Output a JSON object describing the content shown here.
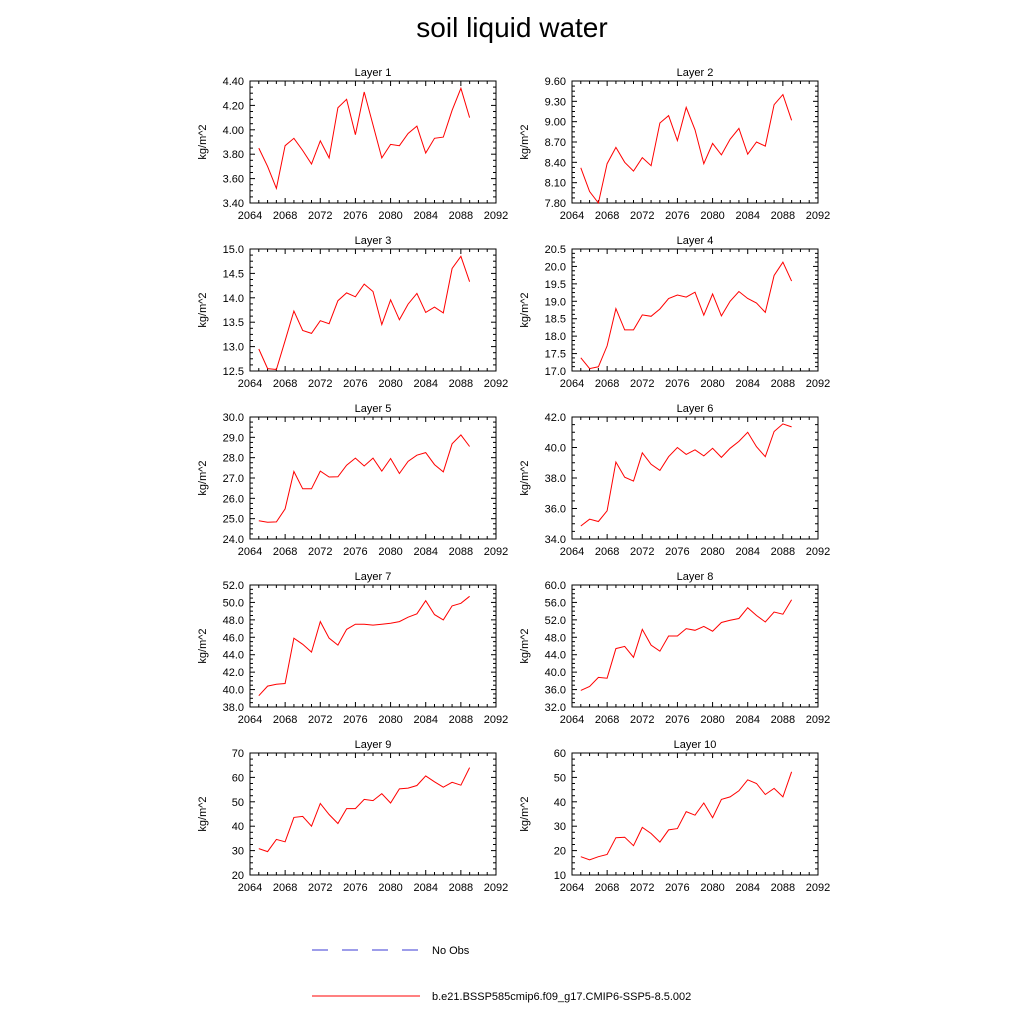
{
  "title": "soil liquid water",
  "legend": {
    "obs_label": "No Obs",
    "model_label": "b.e21.BSSP585cmip6.f09_g17.CMIP6-SSP5-8.5.002",
    "obs_color": "#3b3bd6",
    "model_color": "#ff0000"
  },
  "chart_data": [
    {
      "type": "line",
      "title": "Layer 1",
      "ylabel": "kg/m^2",
      "xlim": [
        2064,
        2092
      ],
      "xticks": [
        2064,
        2068,
        2072,
        2076,
        2080,
        2084,
        2088,
        2092
      ],
      "ylim": [
        3.4,
        4.4
      ],
      "yticks": [
        "3.40",
        "3.60",
        "3.80",
        "4.00",
        "4.20",
        "4.40"
      ],
      "x": [
        2065,
        2066,
        2067,
        2068,
        2069,
        2070,
        2071,
        2072,
        2073,
        2074,
        2075,
        2076,
        2077,
        2078,
        2079,
        2080,
        2081,
        2082,
        2083,
        2084,
        2085,
        2086,
        2087,
        2088,
        2089
      ],
      "y": [
        3.85,
        3.7,
        3.52,
        3.87,
        3.93,
        3.83,
        3.72,
        3.91,
        3.77,
        4.18,
        4.25,
        3.96,
        4.31,
        4.04,
        3.77,
        3.88,
        3.87,
        3.97,
        4.03,
        3.81,
        3.93,
        3.94,
        4.16,
        4.34,
        4.1
      ]
    },
    {
      "type": "line",
      "title": "Layer 2",
      "ylabel": "kg/m^2",
      "xlim": [
        2064,
        2092
      ],
      "xticks": [
        2064,
        2068,
        2072,
        2076,
        2080,
        2084,
        2088,
        2092
      ],
      "ylim": [
        7.8,
        9.6
      ],
      "yticks": [
        "7.80",
        "8.10",
        "8.40",
        "8.70",
        "9.00",
        "9.30",
        "9.60"
      ],
      "x": [
        2065,
        2066,
        2067,
        2068,
        2069,
        2070,
        2071,
        2072,
        2073,
        2074,
        2075,
        2076,
        2077,
        2078,
        2079,
        2080,
        2081,
        2082,
        2083,
        2084,
        2085,
        2086,
        2087,
        2088,
        2089
      ],
      "y": [
        8.32,
        7.97,
        7.8,
        8.38,
        8.62,
        8.4,
        8.27,
        8.47,
        8.35,
        8.98,
        9.09,
        8.72,
        9.21,
        8.88,
        8.38,
        8.68,
        8.51,
        8.74,
        8.9,
        8.52,
        8.7,
        8.64,
        9.25,
        9.4,
        9.02
      ]
    },
    {
      "type": "line",
      "title": "Layer 3",
      "ylabel": "kg/m^2",
      "xlim": [
        2064,
        2092
      ],
      "xticks": [
        2064,
        2068,
        2072,
        2076,
        2080,
        2084,
        2088,
        2092
      ],
      "ylim": [
        12.5,
        15.0
      ],
      "yticks": [
        "12.5",
        "13.0",
        "13.5",
        "14.0",
        "14.5",
        "15.0"
      ],
      "x": [
        2065,
        2066,
        2067,
        2068,
        2069,
        2070,
        2071,
        2072,
        2073,
        2074,
        2075,
        2076,
        2077,
        2078,
        2079,
        2080,
        2081,
        2082,
        2083,
        2084,
        2085,
        2086,
        2087,
        2088,
        2089
      ],
      "y": [
        12.95,
        12.55,
        12.53,
        13.12,
        13.73,
        13.33,
        13.27,
        13.53,
        13.47,
        13.94,
        14.1,
        14.02,
        14.28,
        14.13,
        13.45,
        13.96,
        13.55,
        13.87,
        14.09,
        13.7,
        13.81,
        13.69,
        14.6,
        14.85,
        14.33
      ]
    },
    {
      "type": "line",
      "title": "Layer 4",
      "ylabel": "kg/m^2",
      "xlim": [
        2064,
        2092
      ],
      "xticks": [
        2064,
        2068,
        2072,
        2076,
        2080,
        2084,
        2088,
        2092
      ],
      "ylim": [
        17.0,
        20.5
      ],
      "yticks": [
        "17.0",
        "17.5",
        "18.0",
        "18.5",
        "19.0",
        "19.5",
        "20.0",
        "20.5"
      ],
      "x": [
        2065,
        2066,
        2067,
        2068,
        2069,
        2070,
        2071,
        2072,
        2073,
        2074,
        2075,
        2076,
        2077,
        2078,
        2079,
        2080,
        2081,
        2082,
        2083,
        2084,
        2085,
        2086,
        2087,
        2088,
        2089
      ],
      "y": [
        17.38,
        17.07,
        17.12,
        17.72,
        18.79,
        18.18,
        18.18,
        18.61,
        18.57,
        18.78,
        19.08,
        19.18,
        19.12,
        19.26,
        18.6,
        19.21,
        18.58,
        19.0,
        19.28,
        19.08,
        18.95,
        18.68,
        19.74,
        20.12,
        19.58
      ]
    },
    {
      "type": "line",
      "title": "Layer 5",
      "ylabel": "kg/m^2",
      "xlim": [
        2064,
        2092
      ],
      "xticks": [
        2064,
        2068,
        2072,
        2076,
        2080,
        2084,
        2088,
        2092
      ],
      "ylim": [
        24.0,
        30.0
      ],
      "yticks": [
        "24.0",
        "25.0",
        "26.0",
        "27.0",
        "28.0",
        "29.0",
        "30.0"
      ],
      "x": [
        2065,
        2066,
        2067,
        2068,
        2069,
        2070,
        2071,
        2072,
        2073,
        2074,
        2075,
        2076,
        2077,
        2078,
        2079,
        2080,
        2081,
        2082,
        2083,
        2084,
        2085,
        2086,
        2087,
        2088,
        2089
      ],
      "y": [
        24.9,
        24.82,
        24.84,
        25.48,
        27.32,
        26.47,
        26.47,
        27.34,
        27.05,
        27.06,
        27.63,
        27.98,
        27.59,
        27.98,
        27.34,
        27.96,
        27.22,
        27.82,
        28.12,
        28.25,
        27.66,
        27.3,
        28.68,
        29.12,
        28.55
      ]
    },
    {
      "type": "line",
      "title": "Layer 6",
      "ylabel": "kg/m^2",
      "xlim": [
        2064,
        2092
      ],
      "xticks": [
        2064,
        2068,
        2072,
        2076,
        2080,
        2084,
        2088,
        2092
      ],
      "ylim": [
        34.0,
        42.0
      ],
      "yticks": [
        "34.0",
        "36.0",
        "38.0",
        "40.0",
        "42.0"
      ],
      "x": [
        2065,
        2066,
        2067,
        2068,
        2069,
        2070,
        2071,
        2072,
        2073,
        2074,
        2075,
        2076,
        2077,
        2078,
        2079,
        2080,
        2081,
        2082,
        2083,
        2084,
        2085,
        2086,
        2087,
        2088,
        2089
      ],
      "y": [
        34.85,
        35.3,
        35.15,
        35.85,
        39.05,
        38.05,
        37.8,
        39.65,
        38.9,
        38.5,
        39.4,
        40.0,
        39.55,
        39.85,
        39.45,
        39.95,
        39.35,
        39.95,
        40.4,
        41.0,
        40.05,
        39.4,
        41.05,
        41.55,
        41.35
      ]
    },
    {
      "type": "line",
      "title": "Layer 7",
      "ylabel": "kg/m^2",
      "xlim": [
        2064,
        2092
      ],
      "xticks": [
        2064,
        2068,
        2072,
        2076,
        2080,
        2084,
        2088,
        2092
      ],
      "ylim": [
        38.0,
        52.0
      ],
      "yticks": [
        "38.0",
        "40.0",
        "42.0",
        "44.0",
        "46.0",
        "48.0",
        "50.0",
        "52.0"
      ],
      "x": [
        2065,
        2066,
        2067,
        2068,
        2069,
        2070,
        2071,
        2072,
        2073,
        2074,
        2075,
        2076,
        2077,
        2078,
        2079,
        2080,
        2081,
        2082,
        2083,
        2084,
        2085,
        2086,
        2087,
        2088,
        2089
      ],
      "y": [
        39.3,
        40.4,
        40.6,
        40.7,
        45.9,
        45.2,
        44.3,
        47.8,
        45.9,
        45.1,
        46.9,
        47.5,
        47.5,
        47.4,
        47.5,
        47.6,
        47.8,
        48.3,
        48.7,
        50.2,
        48.6,
        48.0,
        49.6,
        49.9,
        50.7
      ]
    },
    {
      "type": "line",
      "title": "Layer 8",
      "ylabel": "kg/m^2",
      "xlim": [
        2064,
        2092
      ],
      "xticks": [
        2064,
        2068,
        2072,
        2076,
        2080,
        2084,
        2088,
        2092
      ],
      "ylim": [
        32.0,
        60.0
      ],
      "yticks": [
        "32.0",
        "36.0",
        "40.0",
        "44.0",
        "48.0",
        "52.0",
        "56.0",
        "60.0"
      ],
      "x": [
        2065,
        2066,
        2067,
        2068,
        2069,
        2070,
        2071,
        2072,
        2073,
        2074,
        2075,
        2076,
        2077,
        2078,
        2079,
        2080,
        2081,
        2082,
        2083,
        2084,
        2085,
        2086,
        2087,
        2088,
        2089
      ],
      "y": [
        35.8,
        36.7,
        38.8,
        38.6,
        45.4,
        45.9,
        43.4,
        49.8,
        46.2,
        44.8,
        48.3,
        48.3,
        50.0,
        49.6,
        50.5,
        49.4,
        51.4,
        51.9,
        52.3,
        54.8,
        53.0,
        51.5,
        53.8,
        53.3,
        56.6
      ]
    },
    {
      "type": "line",
      "title": "Layer 9",
      "ylabel": "kg/m^2",
      "xlim": [
        2064,
        2092
      ],
      "xticks": [
        2064,
        2068,
        2072,
        2076,
        2080,
        2084,
        2088,
        2092
      ],
      "ylim": [
        20,
        70
      ],
      "yticks": [
        "20",
        "30",
        "40",
        "50",
        "60",
        "70"
      ],
      "x": [
        2065,
        2066,
        2067,
        2068,
        2069,
        2070,
        2071,
        2072,
        2073,
        2074,
        2075,
        2076,
        2077,
        2078,
        2079,
        2080,
        2081,
        2082,
        2083,
        2084,
        2085,
        2086,
        2087,
        2088,
        2089
      ],
      "y": [
        30.8,
        29.6,
        34.6,
        33.6,
        43.6,
        44.0,
        40.0,
        49.3,
        44.8,
        41.1,
        47.2,
        47.2,
        51.0,
        50.5,
        53.3,
        49.5,
        55.3,
        55.6,
        56.7,
        60.6,
        58.2,
        56.0,
        58.0,
        56.8,
        64.0
      ]
    },
    {
      "type": "line",
      "title": "Layer 10",
      "ylabel": "kg/m^2",
      "xlim": [
        2064,
        2092
      ],
      "xticks": [
        2064,
        2068,
        2072,
        2076,
        2080,
        2084,
        2088,
        2092
      ],
      "ylim": [
        10,
        60
      ],
      "yticks": [
        "10",
        "20",
        "30",
        "40",
        "50",
        "60"
      ],
      "x": [
        2065,
        2066,
        2067,
        2068,
        2069,
        2070,
        2071,
        2072,
        2073,
        2074,
        2075,
        2076,
        2077,
        2078,
        2079,
        2080,
        2081,
        2082,
        2083,
        2084,
        2085,
        2086,
        2087,
        2088,
        2089
      ],
      "y": [
        17.5,
        16.2,
        17.5,
        18.4,
        25.3,
        25.5,
        22.0,
        29.5,
        27.0,
        23.5,
        28.5,
        29.0,
        36.0,
        34.5,
        39.5,
        33.5,
        41.0,
        42.0,
        44.5,
        49.0,
        47.5,
        43.0,
        45.5,
        42.0,
        52.3
      ]
    }
  ]
}
